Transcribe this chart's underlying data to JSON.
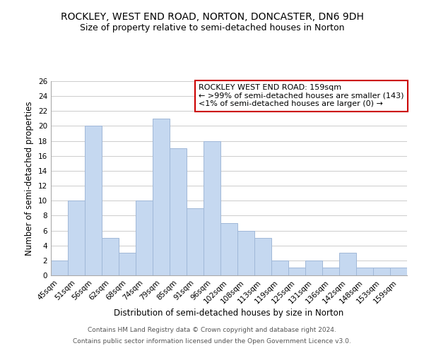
{
  "title": "ROCKLEY, WEST END ROAD, NORTON, DONCASTER, DN6 9DH",
  "subtitle": "Size of property relative to semi-detached houses in Norton",
  "xlabel": "Distribution of semi-detached houses by size in Norton",
  "ylabel": "Number of semi-detached properties",
  "bar_values": [
    2,
    10,
    20,
    5,
    3,
    10,
    21,
    17,
    9,
    18,
    7,
    6,
    5,
    2,
    1,
    2,
    1,
    3,
    1,
    1,
    1
  ],
  "bin_labels": [
    "45sqm",
    "51sqm",
    "56sqm",
    "62sqm",
    "68sqm",
    "74sqm",
    "79sqm",
    "85sqm",
    "91sqm",
    "96sqm",
    "102sqm",
    "108sqm",
    "113sqm",
    "119sqm",
    "125sqm",
    "131sqm",
    "136sqm",
    "142sqm",
    "148sqm",
    "153sqm",
    "159sqm"
  ],
  "bar_color": "#c5d8f0",
  "bar_edge_color": "#a0b8d8",
  "grid_color": "#cccccc",
  "highlight_box_color": "#cc0000",
  "ylim": [
    0,
    26
  ],
  "yticks": [
    0,
    2,
    4,
    6,
    8,
    10,
    12,
    14,
    16,
    18,
    20,
    22,
    24,
    26
  ],
  "legend_title": "ROCKLEY WEST END ROAD: 159sqm",
  "legend_line1": "← >99% of semi-detached houses are smaller (143)",
  "legend_line2": "<1% of semi-detached houses are larger (0) →",
  "footer1": "Contains HM Land Registry data © Crown copyright and database right 2024.",
  "footer2": "Contains public sector information licensed under the Open Government Licence v3.0.",
  "title_fontsize": 10,
  "subtitle_fontsize": 9,
  "axis_label_fontsize": 8.5,
  "tick_fontsize": 7.5,
  "legend_fontsize": 8,
  "footer_fontsize": 6.5
}
